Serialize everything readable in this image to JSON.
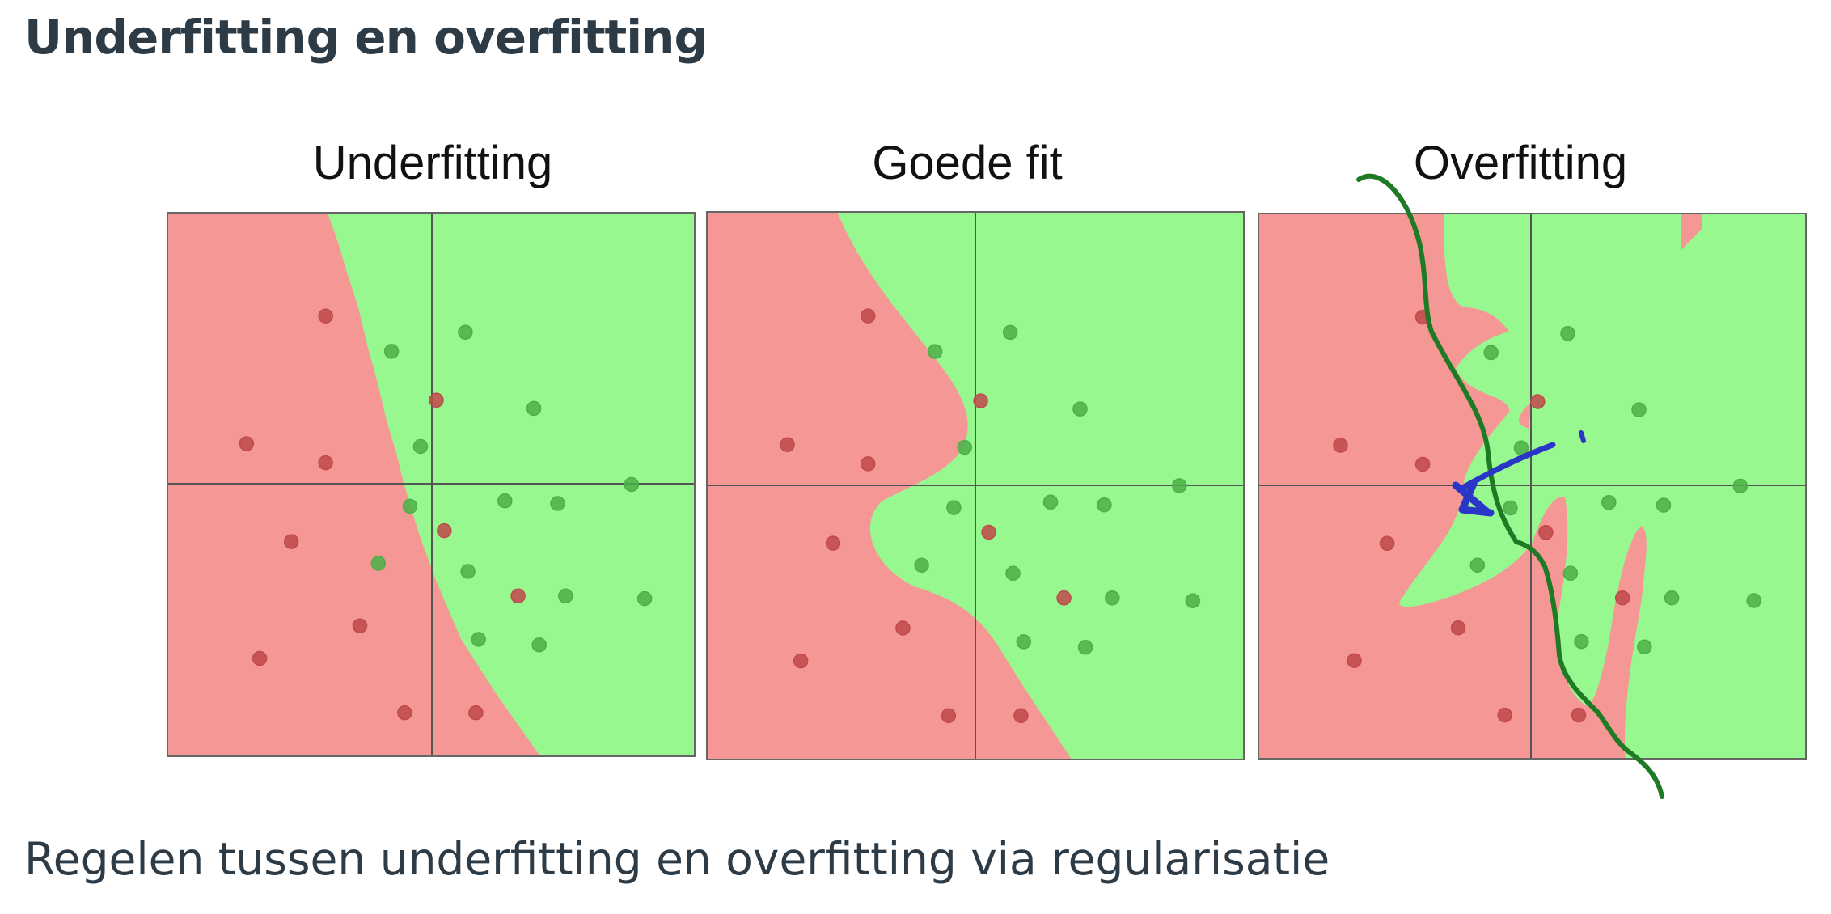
{
  "page": {
    "title": "Underfitting en overfitting",
    "subtitle": "Regelen tussen underfitting en overfitting via regularisatie"
  },
  "colors": {
    "region_red": "#f59795",
    "region_green": "#98f890",
    "point_red": "#c0494a",
    "point_green": "#4bb047",
    "axis": "#555555",
    "ink_green": "#1f7a25",
    "ink_blue": "#2a36c8",
    "text": "#2d3b47"
  },
  "panels": [
    {
      "id": "underfitting",
      "title": "Underfitting"
    },
    {
      "id": "good-fit",
      "title": "Goede fit"
    },
    {
      "id": "overfitting",
      "title": "Overfitting"
    }
  ],
  "points": {
    "red": [
      [
        -0.4,
        0.62
      ],
      [
        -0.7,
        0.15
      ],
      [
        -0.4,
        0.08
      ],
      [
        -0.53,
        -0.21
      ],
      [
        -0.27,
        -0.52
      ],
      [
        -0.65,
        -0.64
      ],
      [
        -0.1,
        -0.84
      ],
      [
        0.17,
        -0.84
      ],
      [
        0.02,
        0.31
      ],
      [
        0.05,
        -0.17
      ],
      [
        0.33,
        -0.41
      ]
    ],
    "green": [
      [
        0.13,
        0.56
      ],
      [
        -0.15,
        0.49
      ],
      [
        0.39,
        0.28
      ],
      [
        -0.04,
        0.14
      ],
      [
        -0.08,
        -0.08
      ],
      [
        0.28,
        -0.06
      ],
      [
        0.48,
        -0.07
      ],
      [
        0.76,
        0.0
      ],
      [
        -0.2,
        -0.29
      ],
      [
        0.14,
        -0.32
      ],
      [
        0.51,
        -0.41
      ],
      [
        0.81,
        -0.42
      ],
      [
        0.18,
        -0.57
      ],
      [
        0.41,
        -0.59
      ]
    ]
  }
}
